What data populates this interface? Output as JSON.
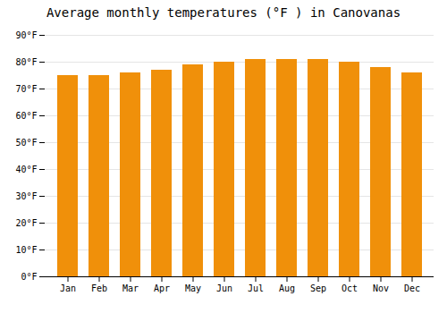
{
  "chart_data": {
    "type": "bar",
    "title": "Average monthly temperatures (°F ) in Canovanas",
    "categories": [
      "Jan",
      "Feb",
      "Mar",
      "Apr",
      "May",
      "Jun",
      "Jul",
      "Aug",
      "Sep",
      "Oct",
      "Nov",
      "Dec"
    ],
    "values": [
      75,
      75,
      76,
      77,
      79,
      80,
      81,
      81,
      81,
      80,
      78,
      76
    ],
    "color": "#F0900A",
    "ylim": [
      0,
      90
    ],
    "yticks": [
      {
        "value": 0,
        "label": "0°F"
      },
      {
        "value": 10,
        "label": "10°F"
      },
      {
        "value": 20,
        "label": "20°F"
      },
      {
        "value": 30,
        "label": "30°F"
      },
      {
        "value": 40,
        "label": "40°F"
      },
      {
        "value": 50,
        "label": "50°F"
      },
      {
        "value": 60,
        "label": "60°F"
      },
      {
        "value": 70,
        "label": "70°F"
      },
      {
        "value": 80,
        "label": "80°F"
      },
      {
        "value": 90,
        "label": "90°F"
      }
    ],
    "grid": true
  }
}
